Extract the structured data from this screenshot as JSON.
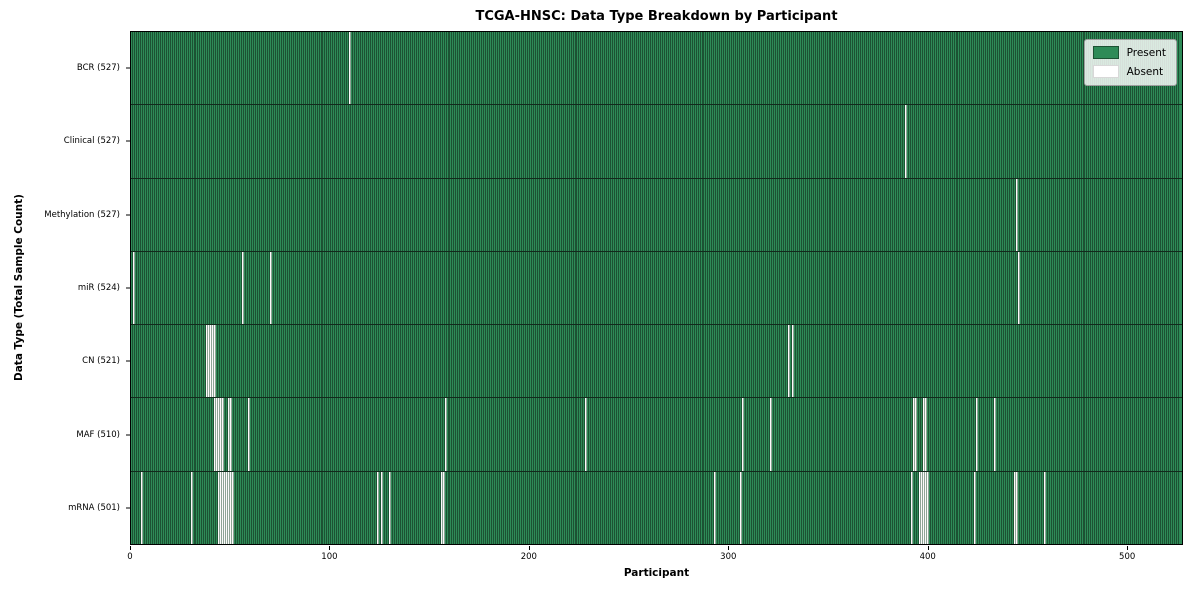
{
  "chart_data": {
    "type": "heatmap",
    "title": "TCGA-HNSC: Data Type Breakdown by Participant",
    "xlabel": "Participant",
    "ylabel": "Data Type (Total Sample Count)",
    "legend_labels": [
      "Present",
      "Absent"
    ],
    "legend_position": "upper right",
    "n_participants": 528,
    "x_ticks": [
      0,
      100,
      200,
      300,
      400,
      500
    ],
    "x_range": [
      0,
      528
    ],
    "grid": false,
    "colors": {
      "present": "#2e8b57",
      "absent": "#ffffff",
      "cell_edge": "#1c5233",
      "axis": "#000000",
      "legend_background": "#dce8e0"
    },
    "rows": [
      {
        "label": "BCR (527)",
        "data_type": "BCR",
        "total": 527,
        "absent_participants": [
          110
        ]
      },
      {
        "label": "Clinical (527)",
        "data_type": "Clinical",
        "total": 527,
        "absent_participants": [
          390
        ]
      },
      {
        "label": "Methylation (527)",
        "data_type": "Methylation",
        "total": 527,
        "absent_participants": [
          446
        ]
      },
      {
        "label": "miR (524)",
        "data_type": "miR",
        "total": 524,
        "absent_participants": [
          1,
          56,
          70,
          447
        ]
      },
      {
        "label": "CN (521)",
        "data_type": "CN",
        "total": 521,
        "absent_participants": [
          38,
          39,
          40,
          41,
          42,
          331,
          333
        ]
      },
      {
        "label": "MAF (510)",
        "data_type": "MAF",
        "total": 510,
        "absent_participants": [
          42,
          43,
          44,
          45,
          46,
          49,
          50,
          59,
          158,
          229,
          308,
          322,
          394,
          395,
          399,
          400,
          426,
          435
        ]
      },
      {
        "label": "mRNA (501)",
        "data_type": "mRNA",
        "total": 501,
        "absent_participants": [
          5,
          30,
          44,
          45,
          46,
          47,
          48,
          49,
          50,
          51,
          124,
          126,
          130,
          156,
          157,
          294,
          307,
          393,
          397,
          398,
          399,
          400,
          401,
          425,
          445,
          446,
          460
        ]
      }
    ]
  }
}
